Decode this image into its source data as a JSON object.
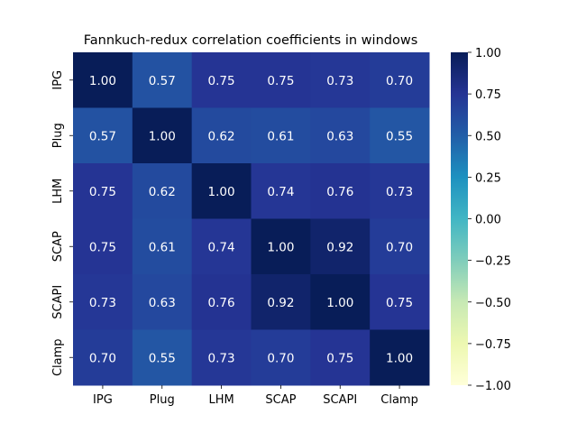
{
  "chart_data": {
    "type": "heatmap",
    "title": "Fannkuch-redux correlation coefficients in windows",
    "xlabel": "",
    "ylabel": "",
    "x_categories": [
      "IPG",
      "Plug",
      "LHM",
      "SCAP",
      "SCAPI",
      "Clamp"
    ],
    "y_categories": [
      "IPG",
      "Plug",
      "LHM",
      "SCAP",
      "SCAPI",
      "Clamp"
    ],
    "values": [
      [
        1.0,
        0.57,
        0.75,
        0.75,
        0.73,
        0.7
      ],
      [
        0.57,
        1.0,
        0.62,
        0.61,
        0.63,
        0.55
      ],
      [
        0.75,
        0.62,
        1.0,
        0.74,
        0.76,
        0.73
      ],
      [
        0.75,
        0.61,
        0.74,
        1.0,
        0.92,
        0.7
      ],
      [
        0.73,
        0.63,
        0.76,
        0.92,
        1.0,
        0.75
      ],
      [
        0.7,
        0.55,
        0.73,
        0.7,
        0.75,
        1.0
      ]
    ],
    "value_format": "0.00",
    "colormap": "YlGnBu",
    "colormap_stops": [
      "#ffffd9",
      "#edf8b1",
      "#c7e9b4",
      "#7fcdbb",
      "#41b6c4",
      "#1d91c0",
      "#225ea8",
      "#253494",
      "#081d58"
    ],
    "vmin": -1.0,
    "vmax": 1.0,
    "colorbar_ticks": [
      "1.00",
      "0.75",
      "0.50",
      "0.25",
      "0.00",
      "−0.25",
      "−0.50",
      "−0.75",
      "−1.00"
    ],
    "annotation_text_color": "#ffffff"
  }
}
